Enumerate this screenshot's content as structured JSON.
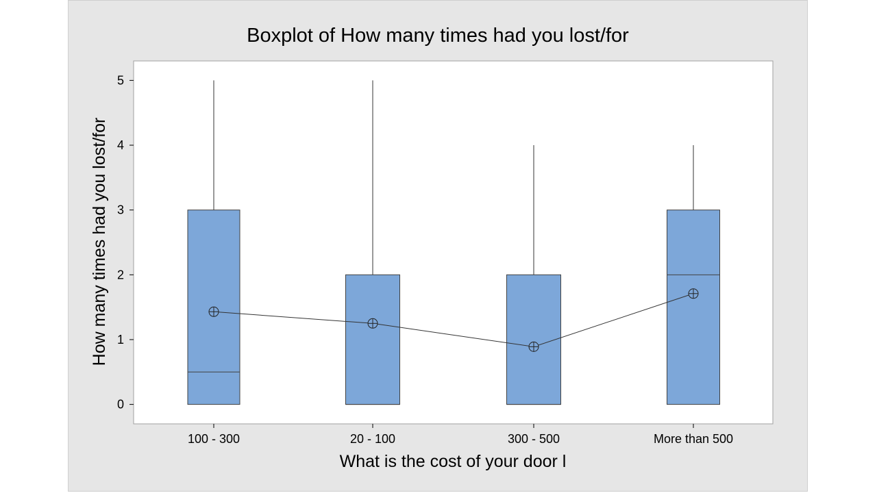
{
  "chart_data": {
    "type": "boxplot",
    "title": "Boxplot of How many times had you lost/for",
    "xlabel": "What is the cost of your door l",
    "ylabel": "How many times had you lost/for",
    "ylim": [
      -0.3,
      5.3
    ],
    "yticks": [
      0,
      1,
      2,
      3,
      4,
      5
    ],
    "categories": [
      "100 - 300",
      "20 - 100",
      "300 - 500",
      "More than 500"
    ],
    "boxes": [
      {
        "category": "100 - 300",
        "min": 0,
        "q1": 0,
        "median": 0.5,
        "q3": 3,
        "max": 5,
        "mean": 1.43
      },
      {
        "category": "20 - 100",
        "min": 0,
        "q1": 0,
        "median": 0,
        "q3": 2,
        "max": 5,
        "mean": 1.25
      },
      {
        "category": "300 - 500",
        "min": 0,
        "q1": 0,
        "median": 0,
        "q3": 2,
        "max": 4,
        "mean": 0.89
      },
      {
        "category": "More than 500",
        "min": 0,
        "q1": 0,
        "median": 2,
        "q3": 3,
        "max": 4,
        "mean": 1.71
      }
    ],
    "mean_connect_line": true,
    "grid": false,
    "colors": {
      "box_fill": "#7da7d9",
      "box_edge": "#404040",
      "frame_bg": "#e6e6e6",
      "plot_bg": "#ffffff"
    }
  }
}
